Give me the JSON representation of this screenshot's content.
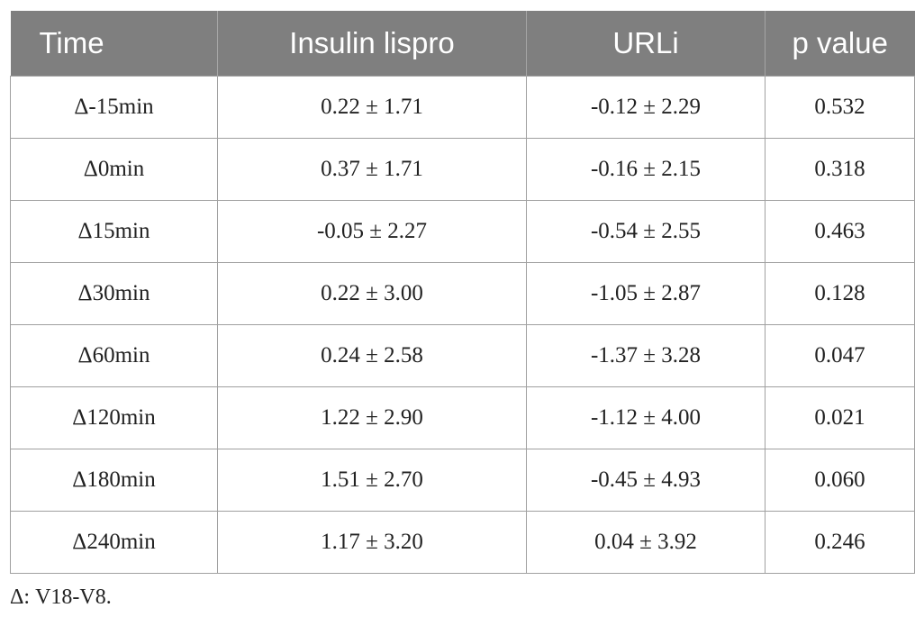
{
  "table": {
    "headers": [
      "Time",
      "Insulin lispro",
      "URLi",
      "p value"
    ],
    "rows": [
      [
        "Δ-15min",
        "0.22 ± 1.71",
        "-0.12 ± 2.29",
        "0.532"
      ],
      [
        "Δ0min",
        "0.37 ± 1.71",
        "-0.16 ± 2.15",
        "0.318"
      ],
      [
        "Δ15min",
        "-0.05 ± 2.27",
        "-0.54 ± 2.55",
        "0.463"
      ],
      [
        "Δ30min",
        "0.22 ± 3.00",
        "-1.05 ± 2.87",
        "0.128"
      ],
      [
        "Δ60min",
        "0.24 ± 2.58",
        "-1.37 ± 3.28",
        "0.047"
      ],
      [
        "Δ120min",
        "1.22 ± 2.90",
        "-1.12 ± 4.00",
        "0.021"
      ],
      [
        "Δ180min",
        "1.51 ± 2.70",
        "-0.45 ± 4.93",
        "0.060"
      ],
      [
        "Δ240min",
        "1.17 ± 3.20",
        "0.04 ± 3.92",
        "0.246"
      ]
    ]
  },
  "footnote": "Δ: V18-V8.",
  "colors": {
    "header_background": "#7f7f7f",
    "header_text": "#ffffff",
    "grid_lines": "#a0a0a0"
  }
}
